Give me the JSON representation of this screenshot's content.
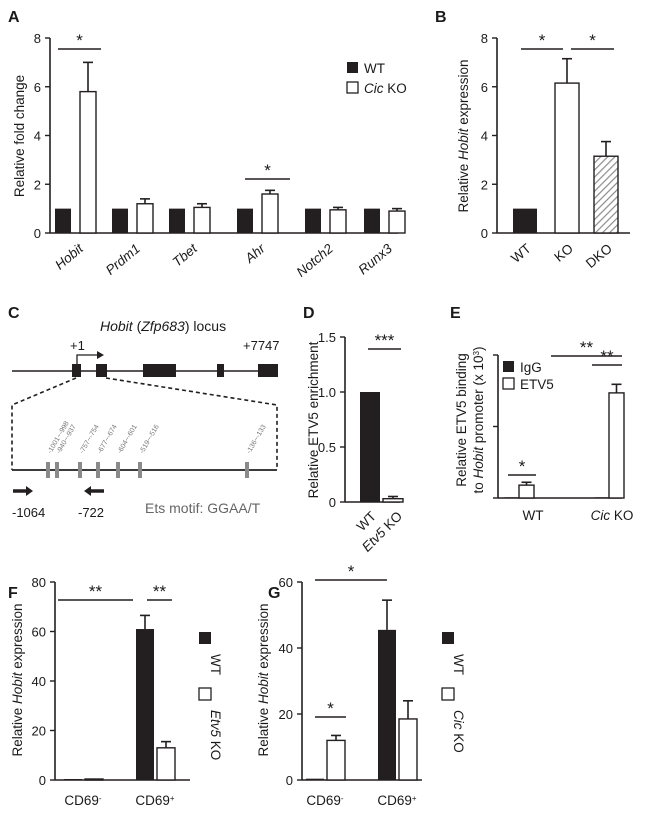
{
  "colors": {
    "wt": "#231f20",
    "ko": "#ffffff",
    "dko_hatch": "#9a9a9a",
    "axis": "#231f20",
    "ets_site": "#8a8a8a"
  },
  "panels": {
    "A": {
      "letter": "A"
    },
    "B": {
      "letter": "B"
    },
    "C": {
      "letter": "C",
      "locus_gene": "Hobit",
      "locus_rest_open": " (",
      "locus_zfp": "Zfp683",
      "locus_rest_close": ") locus",
      "tss_label": "+1",
      "end_label": "+7747",
      "sites": [
        "-1001~-998",
        "-940~-937",
        "-757~-754",
        "-677~-674",
        "-604~-601",
        "-519~-516",
        "-136~-133"
      ],
      "primer_left": "-1064",
      "primer_right": "-722",
      "ets_text": "Ets motif: GGAA/T"
    },
    "D": {
      "letter": "D"
    },
    "E": {
      "letter": "E",
      "ylabel_sup": "3"
    },
    "F": {
      "letter": "F"
    },
    "G": {
      "letter": "G"
    }
  },
  "chart_data": [
    {
      "panel": "A",
      "type": "bar",
      "categories": [
        "Hobit",
        "Prdm1",
        "Tbet",
        "Ahr",
        "Notch2",
        "Runx3"
      ],
      "series": [
        {
          "name": "WT",
          "values": [
            1,
            1,
            1,
            1,
            1,
            1
          ]
        },
        {
          "name": "Cic KO",
          "values": [
            5.8,
            1.2,
            1.05,
            1.6,
            0.95,
            0.9
          ],
          "errors": [
            1.2,
            0.2,
            0.15,
            0.15,
            0.1,
            0.1
          ]
        }
      ],
      "legend": [
        {
          "plain": "WT"
        },
        {
          "italic": "Cic",
          "plain": " KO"
        }
      ],
      "ylabel": "Relative fold change",
      "yticks": [
        "0",
        "2",
        "4",
        "6",
        "8"
      ],
      "ylim": [
        0,
        8
      ],
      "significance": [
        "*",
        "*"
      ]
    },
    {
      "panel": "B",
      "type": "bar",
      "categories": [
        "WT",
        "KO",
        "DKO"
      ],
      "values": [
        1,
        6.15,
        3.15
      ],
      "errors": [
        0,
        1.0,
        0.6
      ],
      "ylabel_pre": "Relative ",
      "ylabel_it": "Hobit",
      "ylabel_post": " expression",
      "yticks": [
        "0",
        "2",
        "4",
        "6",
        "8"
      ],
      "ylim": [
        0,
        8
      ],
      "significance": [
        "*",
        "*"
      ]
    },
    {
      "panel": "D",
      "type": "bar",
      "categories": [
        "WT",
        "Etv5 KO"
      ],
      "values": [
        1.0,
        0.03
      ],
      "errors": [
        0,
        0.02
      ],
      "ylabel": "Relative ETV5 enrichment",
      "yticks": [
        "0",
        "0.5",
        "1.0",
        "1.5"
      ],
      "ylim": [
        0,
        1.5
      ],
      "significance": [
        "***"
      ]
    },
    {
      "panel": "E",
      "type": "bar",
      "categories": [
        "WT",
        "Cic KO"
      ],
      "series": [
        {
          "name": "IgG",
          "values": [
            0.05,
            0.05
          ]
        },
        {
          "name": "ETV5",
          "values": [
            0.9,
            7.35
          ],
          "errors": [
            0.2,
            0.6
          ]
        }
      ],
      "legend": [
        "IgG",
        "ETV5"
      ],
      "ylabel_line1": "Relative ETV5 binding",
      "ylabel_line2_pre": "to ",
      "ylabel_line2_it": "Hobit",
      "ylabel_line2_post": " promoter (x 10",
      "ylabel_line2_end": ")",
      "ylim": [
        0,
        10
      ],
      "significance": [
        "*",
        "**",
        "**"
      ]
    },
    {
      "panel": "F",
      "type": "bar",
      "categories": [
        "CD69",
        "CD69"
      ],
      "category_sup": [
        "-",
        "+"
      ],
      "series": [
        {
          "name": "WT",
          "values": [
            0.4,
            61
          ],
          "errors": [
            0,
            5.5
          ]
        },
        {
          "name": "Etv5 KO",
          "values": [
            0.4,
            13
          ],
          "errors": [
            0,
            2.5
          ]
        }
      ],
      "legend": [
        {
          "plain": "WT"
        },
        {
          "italic": "Etv5",
          "plain": " KO"
        }
      ],
      "ylabel_pre": "Relative ",
      "ylabel_it": "Hobit",
      "ylabel_post": " expression",
      "yticks": [
        "0",
        "20",
        "40",
        "60",
        "80"
      ],
      "ylim": [
        0,
        80
      ],
      "significance": [
        "**",
        "**"
      ]
    },
    {
      "panel": "G",
      "type": "bar",
      "categories": [
        "CD69",
        "CD69"
      ],
      "category_sup": [
        "-",
        "+"
      ],
      "series": [
        {
          "name": "WT",
          "values": [
            0.4,
            45.5
          ],
          "errors": [
            0,
            9
          ]
        },
        {
          "name": "Cic KO",
          "values": [
            12,
            18.5
          ],
          "errors": [
            1.5,
            5.5
          ]
        }
      ],
      "legend": [
        {
          "plain": "WT"
        },
        {
          "italic": "Cic",
          "plain": " KO"
        }
      ],
      "ylabel_pre": "Relative ",
      "ylabel_it": "Hobit",
      "ylabel_post": " expression",
      "yticks": [
        "0",
        "20",
        "40",
        "60"
      ],
      "ylim": [
        0,
        60
      ],
      "significance": [
        "*",
        "*"
      ]
    }
  ]
}
